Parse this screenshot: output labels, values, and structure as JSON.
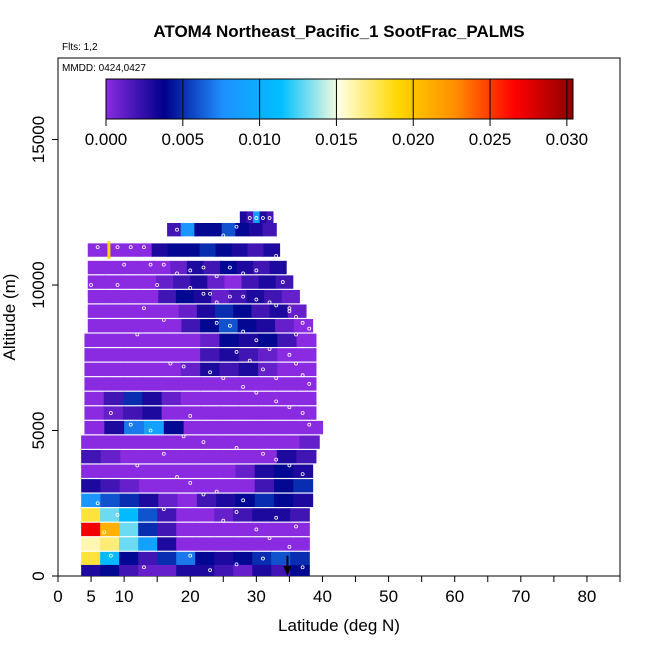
{
  "chart_data": {
    "type": "heatmap",
    "title": "ATOM4 Northeast_Pacific_1 SootFrac_PALMS",
    "flights_label": "Flts: 1,2",
    "dates_label": "MMDD: 0424,0427",
    "xlabel": "Latitude (deg N)",
    "ylabel": "Altitude (m)",
    "xlim": [
      0,
      85
    ],
    "ylim": [
      0,
      17800
    ],
    "x_ticks": [
      0,
      5,
      10,
      20,
      30,
      40,
      50,
      60,
      70,
      80
    ],
    "y_ticks": [
      0,
      5000,
      10000,
      15000
    ],
    "colorbar": {
      "min": 0.0,
      "max": 0.0304,
      "ticks": [
        "0.000",
        "0.005",
        "0.010",
        "0.015",
        "0.020",
        "0.025",
        "0.030"
      ],
      "tick_values": [
        0.0,
        0.005,
        0.01,
        0.015,
        0.02,
        0.025,
        0.03
      ],
      "colors": [
        "#8a2be2",
        "#00008b",
        "#1e90ff",
        "#00bfff",
        "#ffffe0",
        "#ffd700",
        "#ff8c00",
        "#ff0000",
        "#8b0000"
      ]
    },
    "layer_height_m": 460,
    "layers": [
      {
        "alt": 12300,
        "x0": 27.5,
        "x1": 32.5,
        "values": [
          0.003,
          0.002,
          0.009,
          0.003,
          0.002
        ]
      },
      {
        "alt": 11900,
        "x0": 16.5,
        "x1": 33.0,
        "values": [
          0.002,
          0.008,
          0.004,
          0.004,
          0.006,
          0.004,
          0.003,
          0.002
        ]
      },
      {
        "alt": 11200,
        "x0": 4.5,
        "x1": 33.5,
        "values": [
          0.0,
          0.0,
          0.0,
          0.0,
          0.003,
          0.004,
          0.004,
          0.005,
          0.004,
          0.003,
          0.002,
          0.003
        ]
      },
      {
        "alt": 10600,
        "x0": 4.5,
        "x1": 34.5,
        "values": [
          0.0,
          0.0,
          0.0,
          0.0,
          0.0,
          0.001,
          0.003,
          0.002,
          0.004,
          0.003,
          0.002,
          0.003
        ]
      },
      {
        "alt": 10100,
        "x0": 4.5,
        "x1": 35.5,
        "values": [
          0.0,
          0.0,
          0.0,
          0.0,
          0.001,
          0.002,
          0.003,
          0.001,
          0.0,
          0.002,
          0.003,
          0.002
        ]
      },
      {
        "alt": 9600,
        "x0": 4.5,
        "x1": 36.5,
        "values": [
          0.0,
          0.0,
          0.0,
          0.0,
          0.002,
          0.004,
          0.003,
          0.001,
          0.002,
          0.003,
          0.002,
          0.001
        ]
      },
      {
        "alt": 9100,
        "x0": 4.5,
        "x1": 37.5,
        "values": [
          0.0,
          0.0,
          0.0,
          0.0,
          0.0,
          0.001,
          0.003,
          0.005,
          0.004,
          0.002,
          0.003,
          0.001
        ]
      },
      {
        "alt": 8600,
        "x0": 4.5,
        "x1": 38.5,
        "values": [
          0.0,
          0.0,
          0.0,
          0.0,
          0.0,
          0.002,
          0.004,
          0.006,
          0.004,
          0.003,
          0.001,
          0.0
        ]
      },
      {
        "alt": 8100,
        "x0": 4.0,
        "x1": 39.0,
        "values": [
          0.0,
          0.0,
          0.0,
          0.0,
          0.0,
          0.0,
          0.001,
          0.004,
          0.003,
          0.004,
          0.002,
          0.0
        ]
      },
      {
        "alt": 7600,
        "x0": 4.0,
        "x1": 39.0,
        "values": [
          0.0,
          0.0,
          0.0,
          0.0,
          0.0,
          0.0,
          0.002,
          0.003,
          0.002,
          0.001,
          0.0,
          0.0
        ]
      },
      {
        "alt": 7100,
        "x0": 4.0,
        "x1": 39.0,
        "values": [
          0.0,
          0.0,
          0.0,
          0.0,
          0.0,
          0.001,
          0.003,
          0.002,
          0.003,
          0.001,
          0.0,
          0.0
        ]
      },
      {
        "alt": 6600,
        "x0": 4.0,
        "x1": 39.0,
        "values": [
          0.0,
          0.0,
          0.0,
          0.0,
          0.0,
          0.0,
          0.0,
          0.0,
          0.0,
          0.0,
          0.0,
          0.0
        ]
      },
      {
        "alt": 6100,
        "x0": 4.0,
        "x1": 39.0,
        "values": [
          0.0,
          0.002,
          0.005,
          0.003,
          0.001,
          0.0,
          0.0,
          0.0,
          0.0,
          0.0,
          0.0,
          0.0
        ]
      },
      {
        "alt": 5600,
        "x0": 4.0,
        "x1": 39.0,
        "values": [
          0.0,
          0.001,
          0.002,
          0.003,
          0.0,
          0.0,
          0.0,
          0.0,
          0.0,
          0.0,
          0.0,
          0.0
        ]
      },
      {
        "alt": 5100,
        "x0": 4.0,
        "x1": 40.0,
        "values": [
          0.0,
          0.003,
          0.007,
          0.009,
          0.004,
          0.0,
          0.0,
          0.0,
          0.0,
          0.0,
          0.0,
          0.0
        ]
      },
      {
        "alt": 4600,
        "x0": 3.5,
        "x1": 39.5,
        "values": [
          0.0,
          0.0,
          0.0,
          0.0,
          0.0,
          0.0,
          0.0,
          0.0,
          0.0,
          0.0,
          0.0,
          0.001
        ]
      },
      {
        "alt": 4100,
        "x0": 3.5,
        "x1": 39.0,
        "values": [
          0.002,
          0.001,
          0.0,
          0.0,
          0.0,
          0.0,
          0.0,
          0.0,
          0.0,
          0.0,
          0.003,
          0.002
        ]
      },
      {
        "alt": 3600,
        "x0": 3.5,
        "x1": 38.5,
        "values": [
          0.0,
          0.0,
          0.0,
          0.0,
          0.0,
          0.0,
          0.0,
          0.0,
          0.001,
          0.003,
          0.004,
          0.003
        ]
      },
      {
        "alt": 3100,
        "x0": 3.5,
        "x1": 38.5,
        "values": [
          0.003,
          0.002,
          0.001,
          0.0,
          0.0,
          0.0,
          0.0,
          0.0,
          0.0,
          0.002,
          0.004,
          0.005
        ]
      },
      {
        "alt": 2600,
        "x0": 3.5,
        "x1": 38.5,
        "values": [
          0.008,
          0.006,
          0.005,
          0.003,
          0.001,
          0.0,
          0.002,
          0.003,
          0.004,
          0.005,
          0.004,
          0.003
        ]
      },
      {
        "alt": 2100,
        "x0": 3.5,
        "x1": 38.0,
        "values": [
          0.018,
          0.013,
          0.011,
          0.006,
          0.002,
          0.0,
          0.0,
          0.001,
          0.002,
          0.003,
          0.003,
          0.002
        ]
      },
      {
        "alt": 1600,
        "x0": 3.5,
        "x1": 38.0,
        "values": [
          0.027,
          0.021,
          0.013,
          0.005,
          0.002,
          0.0,
          0.0,
          0.0,
          0.0,
          0.0,
          0.0,
          0.0
        ]
      },
      {
        "alt": 1100,
        "x0": 3.5,
        "x1": 38.0,
        "values": [
          0.016,
          0.017,
          0.013,
          0.009,
          0.003,
          0.0,
          0.0,
          0.0,
          0.0,
          0.0,
          0.0,
          0.0
        ]
      },
      {
        "alt": 600,
        "x0": 3.5,
        "x1": 38.0,
        "values": [
          0.018,
          0.011,
          0.004,
          0.002,
          0.005,
          0.007,
          0.004,
          0.003,
          0.004,
          0.005,
          0.006,
          0.005
        ]
      },
      {
        "alt": 150,
        "x0": 3.5,
        "x1": 38.0,
        "values": [
          0.003,
          0.004,
          0.002,
          0.001,
          0.001,
          0.003,
          0.003,
          0.002,
          0.001,
          0.003,
          0.002,
          0.004
        ]
      }
    ],
    "sample_points": [
      [
        6,
        11300
      ],
      [
        9,
        11300
      ],
      [
        11,
        11300
      ],
      [
        13,
        11300
      ],
      [
        10,
        10700
      ],
      [
        14,
        10700
      ],
      [
        16,
        10700
      ],
      [
        18,
        10400
      ],
      [
        20,
        10500
      ],
      [
        22,
        10600
      ],
      [
        24,
        10300
      ],
      [
        26,
        10600
      ],
      [
        28,
        10400
      ],
      [
        30,
        10500
      ],
      [
        5,
        10000
      ],
      [
        9,
        10000
      ],
      [
        15,
        10000
      ],
      [
        20,
        9900
      ],
      [
        23,
        9700
      ],
      [
        26,
        9600
      ],
      [
        28,
        9600
      ],
      [
        30,
        9500
      ],
      [
        32,
        9400
      ],
      [
        33,
        9300
      ],
      [
        35,
        9200
      ],
      [
        36,
        8900
      ],
      [
        37,
        8700
      ],
      [
        38,
        8500
      ],
      [
        22,
        9700
      ],
      [
        24,
        9400
      ],
      [
        13,
        9200
      ],
      [
        16,
        8800
      ],
      [
        26,
        8600
      ],
      [
        28,
        8400
      ],
      [
        30,
        8100
      ],
      [
        32,
        7800
      ],
      [
        35,
        7600
      ],
      [
        36,
        7300
      ],
      [
        37,
        6900
      ],
      [
        38,
        6600
      ],
      [
        12,
        8300
      ],
      [
        17,
        7300
      ],
      [
        19,
        7200
      ],
      [
        23,
        7000
      ],
      [
        25,
        6800
      ],
      [
        28,
        6500
      ],
      [
        30,
        6300
      ],
      [
        33,
        6000
      ],
      [
        35,
        5800
      ],
      [
        37,
        5600
      ],
      [
        38,
        5200
      ],
      [
        8,
        5600
      ],
      [
        11,
        5200
      ],
      [
        14,
        5000
      ],
      [
        19,
        4800
      ],
      [
        22,
        4600
      ],
      [
        27,
        4400
      ],
      [
        31,
        4200
      ],
      [
        33,
        4000
      ],
      [
        35,
        3800
      ],
      [
        37,
        3500
      ],
      [
        20,
        3200
      ],
      [
        24,
        2900
      ],
      [
        28,
        2600
      ],
      [
        16,
        2300
      ],
      [
        25,
        1900
      ],
      [
        30,
        1600
      ],
      [
        32,
        1300
      ],
      [
        35,
        1000
      ],
      [
        20,
        700
      ],
      [
        27,
        400
      ],
      [
        37,
        300
      ],
      [
        6,
        2500
      ],
      [
        9,
        2100
      ],
      [
        7,
        1500
      ],
      [
        29,
        12300
      ],
      [
        30,
        12300
      ],
      [
        31,
        12300
      ],
      [
        32,
        12300
      ],
      [
        27,
        12000
      ],
      [
        18,
        11900
      ],
      [
        25,
        11700
      ],
      [
        31,
        11500
      ],
      [
        33,
        11000
      ],
      [
        34,
        10100
      ],
      [
        35,
        9100
      ],
      [
        36,
        8300
      ],
      [
        24,
        8700
      ],
      [
        27,
        7700
      ],
      [
        29,
        7400
      ],
      [
        31,
        7100
      ],
      [
        33,
        6800
      ],
      [
        20,
        5500
      ],
      [
        16,
        4200
      ],
      [
        12,
        3800
      ],
      [
        18,
        3400
      ],
      [
        22,
        2800
      ],
      [
        27,
        2200
      ],
      [
        33,
        2000
      ],
      [
        36,
        1700
      ],
      [
        8,
        700
      ],
      [
        13,
        300
      ],
      [
        23,
        200
      ],
      [
        31,
        600
      ]
    ],
    "arrow_marker": {
      "x": 34.7,
      "alt": 700
    },
    "yellow_marker": {
      "x": 7.7,
      "alt": 11100
    }
  }
}
